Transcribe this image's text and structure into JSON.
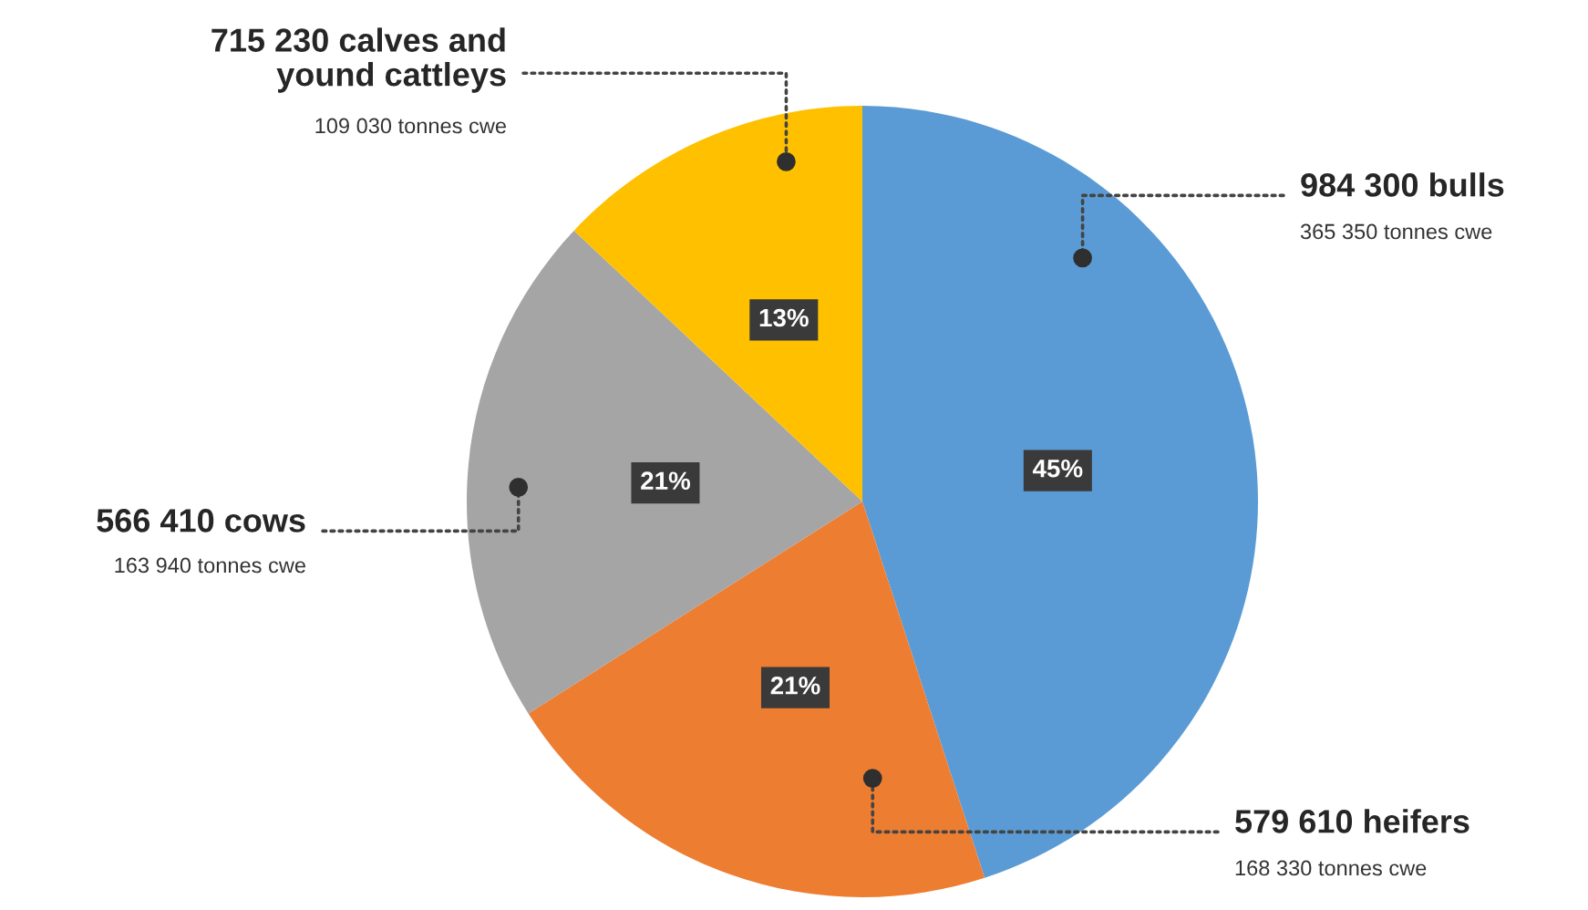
{
  "chart_data": {
    "type": "pie",
    "categories": [
      "984 300 bulls",
      "579 610 heifers",
      "566 410 cows",
      "715 230 calves and\nyound cattleys"
    ],
    "values": [
      45,
      21,
      21,
      13
    ],
    "colors": [
      "#5b9bd5",
      "#ed7d31",
      "#a5a5a5",
      "#ffc000"
    ],
    "value_labels": [
      "45%",
      "21%",
      "21%",
      "13%"
    ],
    "annotations": [
      "365 350 tonnes cwe",
      "168 330 tonnes cwe",
      "163 940 tonnes cwe",
      "109 030 tonnes cwe"
    ]
  }
}
